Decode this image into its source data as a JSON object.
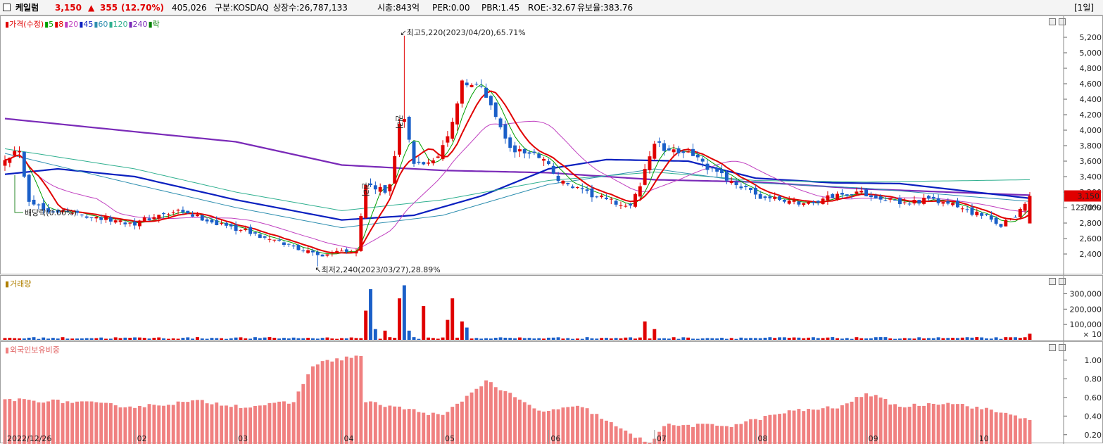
{
  "header": {
    "name": "케일럼",
    "price": "3,150",
    "change_arrow": "▲",
    "change": "355",
    "change_pct": "(12.70%)",
    "volume": "405,026",
    "market": "구분:KOSDAQ",
    "listed_shares": "상장수:26,787,133",
    "market_cap": "시총:843억",
    "per": "PER:0.00",
    "pbr": "PBR:1.45",
    "roe": "ROE:-32.67",
    "retention": "유보율:383.76",
    "period": "[1일]"
  },
  "colors": {
    "up": "#e00000",
    "down": "#1a5fc8",
    "ma5": "#00a000",
    "ma8": "#e00000",
    "ma20": "#c040c0",
    "ma45": "#0a1fbf",
    "ma60": "#2f8fb0",
    "ma120": "#30b090",
    "ma240": "#7a2ab8",
    "foreign": "#f08080"
  },
  "price_pane": {
    "legend": [
      {
        "label": "가격(수정)",
        "color": "#e00000"
      },
      {
        "label": "5",
        "color": "#00a000"
      },
      {
        "label": "8",
        "color": "#e00000"
      },
      {
        "label": "20",
        "color": "#c040c0"
      },
      {
        "label": "45",
        "color": "#0a1fbf"
      },
      {
        "label": "60",
        "color": "#2f8fb0"
      },
      {
        "label": "120",
        "color": "#30b090"
      },
      {
        "label": "240",
        "color": "#7a2ab8"
      },
      {
        "label": "락",
        "color": "#008000"
      }
    ],
    "high_annotation": "최고5,220(2023/04/20),65.71%",
    "low_annotation": "최저2,240(2023/03/27),28.89%",
    "dividend_annotation": "배당락(0.00%)",
    "current_label": "3,150",
    "current_pct": "12.70%",
    "rights_mark": "권리"
  },
  "volume_pane": {
    "legend": "거래량",
    "unit": "× 10"
  },
  "foreign_pane": {
    "legend": "외국인보유비중"
  },
  "chart_data": [
    {
      "type": "candlestick",
      "title": "가격(수정)",
      "ylim": [
        2200,
        5400
      ],
      "yticks": [
        2400,
        2600,
        2800,
        3000,
        3200,
        3400,
        3600,
        3800,
        4000,
        4200,
        4400,
        4600,
        4800,
        5000,
        5200
      ],
      "ytick_labels": [
        "2,400",
        "2,600",
        "2,800",
        "3,000",
        "3,200",
        "3,400",
        "3,600",
        "3,800",
        "4,000",
        "4,200",
        "4,400",
        "4,600",
        "4,800",
        "5,000",
        "5,200"
      ],
      "x_labels": [
        "2022/12/26",
        "02",
        "03",
        "04",
        "05",
        "06",
        "07",
        "08",
        "09",
        "10"
      ],
      "x_label_dates": [
        "2022-12-26",
        "2023-02-01",
        "2023-03-02",
        "2023-04-03",
        "2023-05-02",
        "2023-06-01",
        "2023-07-03",
        "2023-08-01",
        "2023-09-01",
        "2023-10-04"
      ],
      "anchors": [
        [
          "2022-12-26",
          3650
        ],
        [
          "2022-12-29",
          3760
        ],
        [
          "2023-01-02",
          3100
        ],
        [
          "2023-01-05",
          2980
        ],
        [
          "2023-01-10",
          2960
        ],
        [
          "2023-01-16",
          2920
        ],
        [
          "2023-01-25",
          2840
        ],
        [
          "2023-02-01",
          2800
        ],
        [
          "2023-02-07",
          2880
        ],
        [
          "2023-02-14",
          2940
        ],
        [
          "2023-02-20",
          2880
        ],
        [
          "2023-02-27",
          2780
        ],
        [
          "2023-03-06",
          2700
        ],
        [
          "2023-03-13",
          2580
        ],
        [
          "2023-03-20",
          2500
        ],
        [
          "2023-03-27",
          2380
        ],
        [
          "2023-04-03",
          2460
        ],
        [
          "2023-04-06",
          2450
        ],
        [
          "2023-04-10",
          3300
        ],
        [
          "2023-04-14",
          3200
        ],
        [
          "2023-04-17",
          3300
        ],
        [
          "2023-04-19",
          4100
        ],
        [
          "2023-04-20",
          4150
        ],
        [
          "2023-04-24",
          3550
        ],
        [
          "2023-04-28",
          3600
        ],
        [
          "2023-05-03",
          3900
        ],
        [
          "2023-05-08",
          4600
        ],
        [
          "2023-05-12",
          4550
        ],
        [
          "2023-05-17",
          4200
        ],
        [
          "2023-05-22",
          3750
        ],
        [
          "2023-05-26",
          3700
        ],
        [
          "2023-05-31",
          3650
        ],
        [
          "2023-06-05",
          3350
        ],
        [
          "2023-06-12",
          3200
        ],
        [
          "2023-06-19",
          3100
        ],
        [
          "2023-06-26",
          3000
        ],
        [
          "2023-06-28",
          3300
        ],
        [
          "2023-07-03",
          3850
        ],
        [
          "2023-07-06",
          3700
        ],
        [
          "2023-07-12",
          3750
        ],
        [
          "2023-07-18",
          3500
        ],
        [
          "2023-07-25",
          3350
        ],
        [
          "2023-08-01",
          3150
        ],
        [
          "2023-08-08",
          3100
        ],
        [
          "2023-08-16",
          3050
        ],
        [
          "2023-08-23",
          3150
        ],
        [
          "2023-08-30",
          3200
        ],
        [
          "2023-09-05",
          3150
        ],
        [
          "2023-09-12",
          3050
        ],
        [
          "2023-09-19",
          3100
        ],
        [
          "2023-09-26",
          3050
        ],
        [
          "2023-10-05",
          2900
        ],
        [
          "2023-10-11",
          2780
        ],
        [
          "2023-10-16",
          2900
        ],
        [
          "2023-10-19",
          3150
        ]
      ],
      "high": {
        "date": "2023-04-20",
        "value": 5220
      },
      "low": {
        "date": "2023-03-27",
        "value": 2240
      },
      "last": {
        "date": "2023-10-19",
        "value": 3150,
        "change": 355,
        "change_pct": 12.7
      },
      "moving_averages": [
        {
          "name": "240",
          "points": [
            [
              "2022-12-26",
              4150
            ],
            [
              "2023-02-01",
              3980
            ],
            [
              "2023-03-02",
              3850
            ],
            [
              "2023-04-03",
              3550
            ],
            [
              "2023-05-02",
              3480
            ],
            [
              "2023-06-01",
              3450
            ],
            [
              "2023-07-03",
              3360
            ],
            [
              "2023-08-01",
              3330
            ],
            [
              "2023-09-01",
              3240
            ],
            [
              "2023-10-19",
              3160
            ]
          ]
        },
        {
          "name": "45",
          "points": [
            [
              "2022-12-26",
              3430
            ],
            [
              "2023-01-10",
              3500
            ],
            [
              "2023-02-01",
              3400
            ],
            [
              "2023-03-02",
              3100
            ],
            [
              "2023-04-03",
              2840
            ],
            [
              "2023-04-24",
              2900
            ],
            [
              "2023-05-12",
              3150
            ],
            [
              "2023-06-01",
              3500
            ],
            [
              "2023-06-19",
              3620
            ],
            [
              "2023-07-12",
              3600
            ],
            [
              "2023-08-01",
              3380
            ],
            [
              "2023-08-23",
              3320
            ],
            [
              "2023-09-12",
              3310
            ],
            [
              "2023-10-19",
              3120
            ]
          ]
        },
        {
          "name": "120",
          "points": [
            [
              "2022-12-26",
              3760
            ],
            [
              "2023-02-01",
              3500
            ],
            [
              "2023-03-02",
              3200
            ],
            [
              "2023-04-03",
              2960
            ],
            [
              "2023-05-02",
              3100
            ],
            [
              "2023-06-01",
              3350
            ],
            [
              "2023-07-03",
              3460
            ],
            [
              "2023-08-01",
              3350
            ],
            [
              "2023-09-01",
              3330
            ],
            [
              "2023-10-19",
              3360
            ]
          ]
        },
        {
          "name": "60",
          "points": [
            [
              "2022-12-26",
              3700
            ],
            [
              "2023-02-01",
              3300
            ],
            [
              "2023-03-02",
              3000
            ],
            [
              "2023-04-03",
              2740
            ],
            [
              "2023-05-02",
              2900
            ],
            [
              "2023-06-01",
              3300
            ],
            [
              "2023-07-03",
              3500
            ],
            [
              "2023-08-01",
              3320
            ],
            [
              "2023-09-01",
              3250
            ],
            [
              "2023-10-19",
              3080
            ]
          ]
        }
      ]
    },
    {
      "type": "bar",
      "title": "거래량",
      "unit": "× 10",
      "ylim": [
        0,
        380000
      ],
      "yticks": [
        100000,
        200000,
        300000
      ],
      "ytick_labels": [
        "100,000",
        "200,000",
        "300,000"
      ],
      "spikes": [
        {
          "date": "2023-04-10",
          "value": 190000,
          "dir": "up"
        },
        {
          "date": "2023-04-11",
          "value": 330000,
          "dir": "down"
        },
        {
          "date": "2023-04-12",
          "value": 70000,
          "dir": "down"
        },
        {
          "date": "2023-04-14",
          "value": 60000,
          "dir": "up"
        },
        {
          "date": "2023-04-19",
          "value": 270000,
          "dir": "up"
        },
        {
          "date": "2023-04-20",
          "value": 355000,
          "dir": "down"
        },
        {
          "date": "2023-04-21",
          "value": 60000,
          "dir": "down"
        },
        {
          "date": "2023-04-26",
          "value": 220000,
          "dir": "up"
        },
        {
          "date": "2023-05-03",
          "value": 130000,
          "dir": "up"
        },
        {
          "date": "2023-05-04",
          "value": 270000,
          "dir": "up"
        },
        {
          "date": "2023-05-08",
          "value": 120000,
          "dir": "up"
        },
        {
          "date": "2023-05-09",
          "value": 80000,
          "dir": "down"
        },
        {
          "date": "2023-06-29",
          "value": 120000,
          "dir": "up"
        },
        {
          "date": "2023-07-03",
          "value": 70000,
          "dir": "up"
        },
        {
          "date": "2023-10-19",
          "value": 40000,
          "dir": "up"
        }
      ],
      "baseline_typical": 12000
    },
    {
      "type": "bar",
      "title": "외국인보유비중",
      "ylim": [
        0.1,
        1.12
      ],
      "yticks": [
        0.2,
        0.4,
        0.6,
        0.8,
        1.0
      ],
      "ytick_labels": [
        "0.20",
        "0.40",
        "0.60",
        "0.80",
        "1.00"
      ],
      "anchors": [
        [
          "2022-12-26",
          0.58
        ],
        [
          "2023-01-16",
          0.55
        ],
        [
          "2023-02-01",
          0.5
        ],
        [
          "2023-02-20",
          0.56
        ],
        [
          "2023-03-06",
          0.5
        ],
        [
          "2023-03-20",
          0.55
        ],
        [
          "2023-03-24",
          0.95
        ],
        [
          "2023-03-30",
          1.0
        ],
        [
          "2023-04-07",
          1.05
        ],
        [
          "2023-04-10",
          0.55
        ],
        [
          "2023-04-20",
          0.48
        ],
        [
          "2023-05-02",
          0.4
        ],
        [
          "2023-05-15",
          0.78
        ],
        [
          "2023-05-30",
          0.45
        ],
        [
          "2023-06-12",
          0.5
        ],
        [
          "2023-06-26",
          0.2
        ],
        [
          "2023-06-30",
          0.11
        ],
        [
          "2023-07-05",
          0.3
        ],
        [
          "2023-07-25",
          0.3
        ],
        [
          "2023-08-10",
          0.45
        ],
        [
          "2023-08-25",
          0.5
        ],
        [
          "2023-09-01",
          0.65
        ],
        [
          "2023-09-12",
          0.5
        ],
        [
          "2023-09-26",
          0.55
        ],
        [
          "2023-10-10",
          0.45
        ],
        [
          "2023-10-19",
          0.37
        ]
      ]
    }
  ]
}
